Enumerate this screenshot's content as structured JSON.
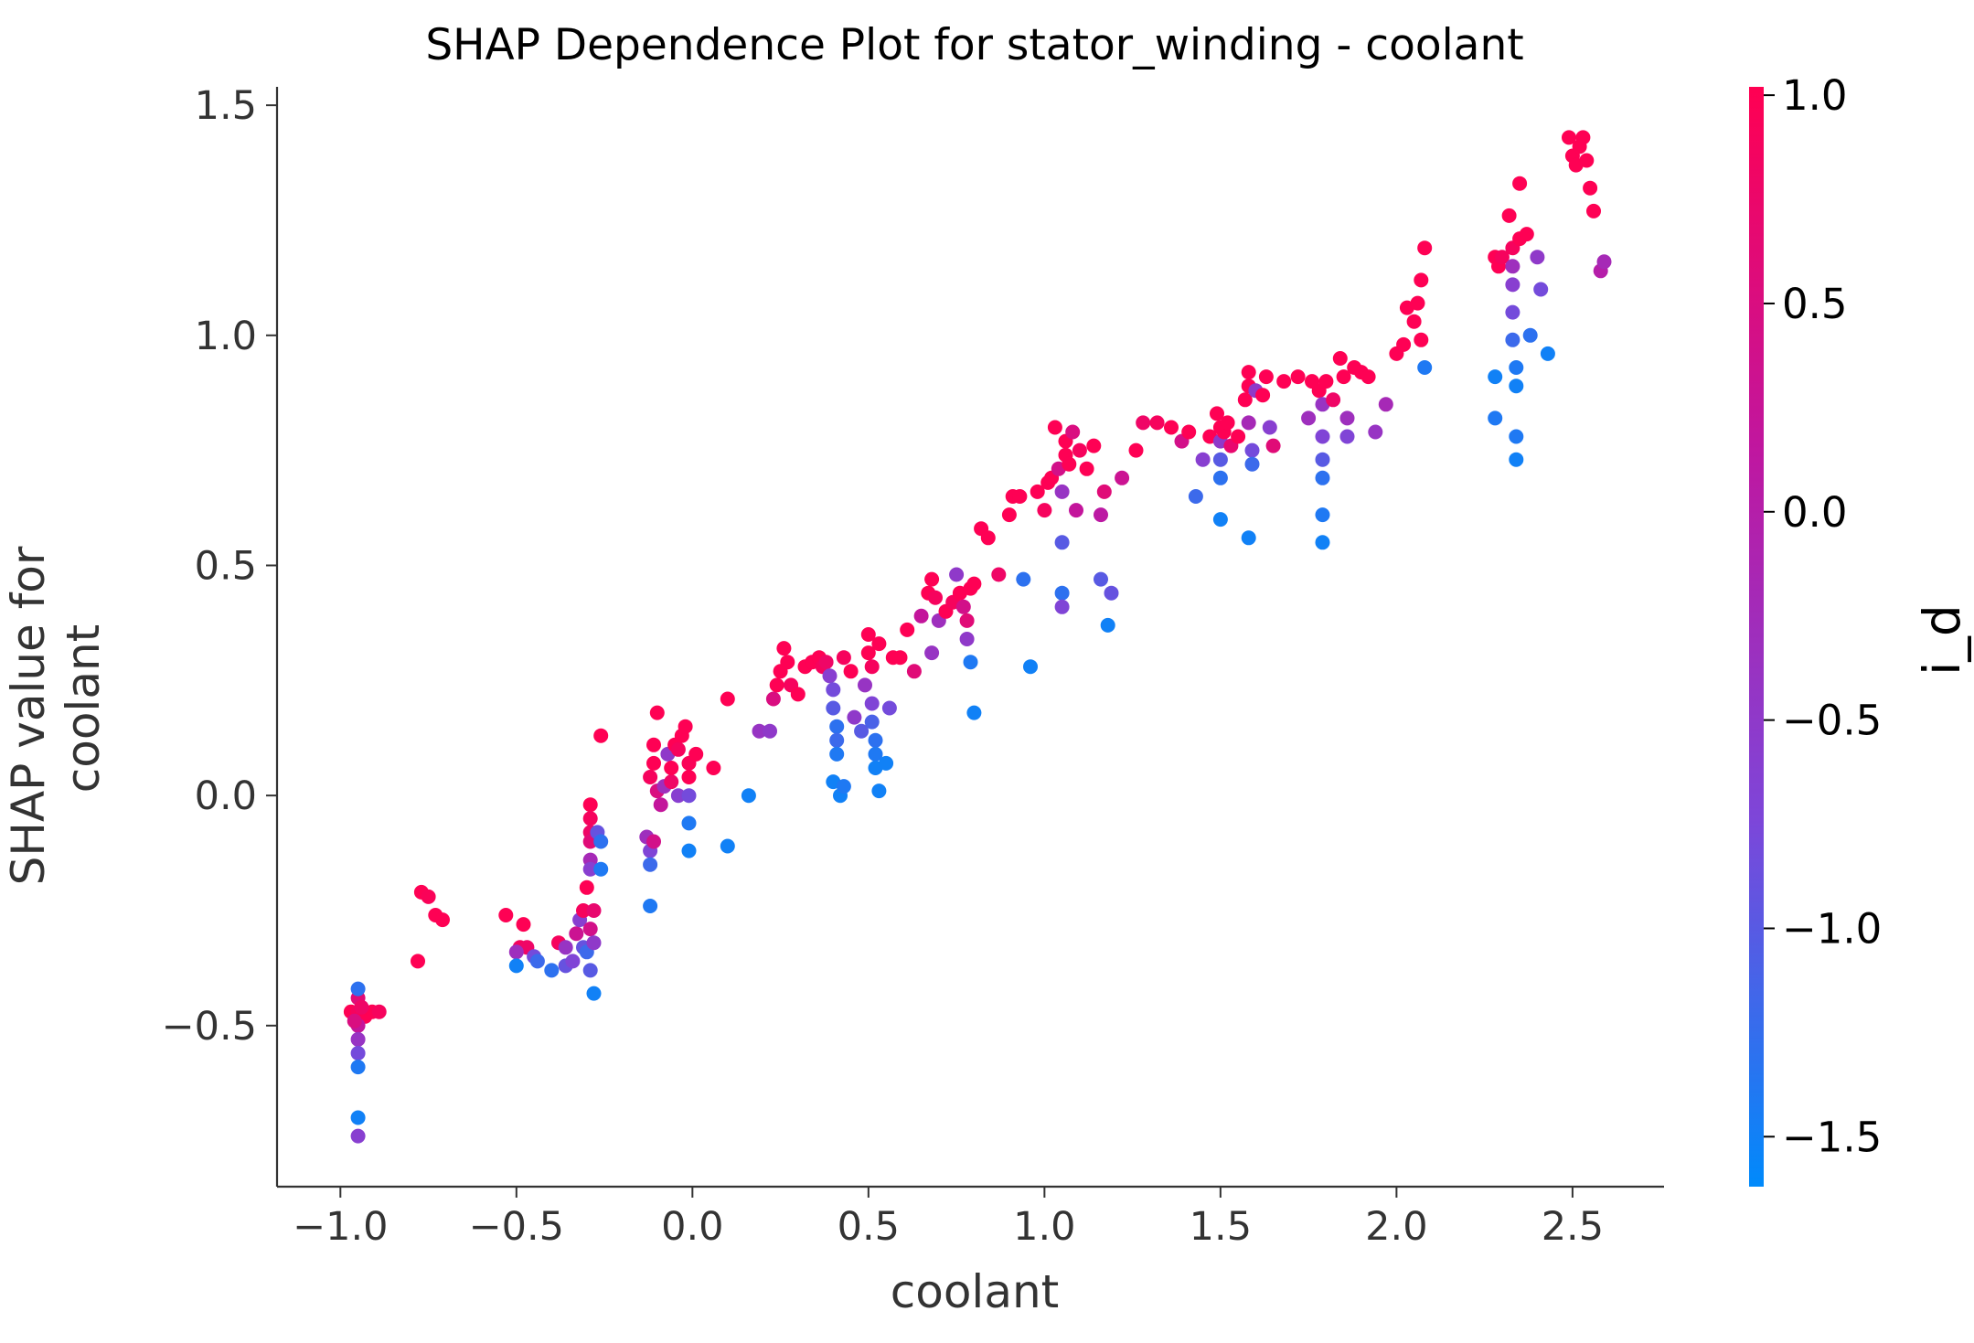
{
  "chart_data": {
    "type": "scatter",
    "title": "SHAP Dependence Plot for stator_winding - coolant",
    "xlabel": "coolant",
    "ylabel_lines": [
      "SHAP value for",
      "coolant"
    ],
    "xlim": [
      -1.18,
      2.76
    ],
    "ylim": [
      -0.85,
      1.54
    ],
    "x_ticks": [
      -1.0,
      -0.5,
      0.0,
      0.5,
      1.0,
      1.5,
      2.0,
      2.5
    ],
    "x_tick_labels": [
      "−1.0",
      "−0.5",
      "0.0",
      "0.5",
      "1.0",
      "1.5",
      "2.0",
      "2.5"
    ],
    "y_ticks": [
      -0.5,
      0.0,
      0.5,
      1.0,
      1.5
    ],
    "y_tick_labels": [
      "−0.5",
      "0.0",
      "0.5",
      "1.0",
      "1.5"
    ],
    "grid": false,
    "colorbar": {
      "label": "i_d",
      "range": [
        -1.62,
        1.02
      ],
      "ticks": [
        1.0,
        0.5,
        0.0,
        -0.5,
        -1.0,
        -1.5
      ],
      "tick_labels": [
        "1.0",
        "0.5",
        "0.0",
        "−0.5",
        "−1.0",
        "−1.5"
      ],
      "colors": [
        "#008afb",
        "#7d46d9",
        "#bf17a0",
        "#ff0052"
      ]
    },
    "points": [
      [
        -0.97,
        -0.47,
        1.0
      ],
      [
        -0.95,
        -0.47,
        0.9
      ],
      [
        -0.93,
        -0.48,
        1.0
      ],
      [
        -0.91,
        -0.47,
        1.0
      ],
      [
        -0.89,
        -0.47,
        0.9
      ],
      [
        -0.95,
        -0.44,
        0.6
      ],
      [
        -0.95,
        -0.5,
        0.2
      ],
      [
        -0.95,
        -0.53,
        -0.4
      ],
      [
        -0.95,
        -0.56,
        -0.8
      ],
      [
        -0.95,
        -0.59,
        -1.4
      ],
      [
        -0.95,
        -0.42,
        -1.3
      ],
      [
        -0.95,
        -0.7,
        -1.5
      ],
      [
        -0.95,
        -0.74,
        -0.6
      ],
      [
        -0.94,
        -0.46,
        0.8
      ],
      [
        -0.96,
        -0.49,
        0.5
      ],
      [
        -0.77,
        -0.21,
        1.0
      ],
      [
        -0.75,
        -0.22,
        0.95
      ],
      [
        -0.73,
        -0.26,
        1.0
      ],
      [
        -0.71,
        -0.27,
        1.0
      ],
      [
        -0.78,
        -0.36,
        1.0
      ],
      [
        -0.53,
        -0.26,
        1.0
      ],
      [
        -0.48,
        -0.28,
        1.0
      ],
      [
        -0.49,
        -0.33,
        0.9
      ],
      [
        -0.47,
        -0.33,
        0.8
      ],
      [
        -0.5,
        -0.34,
        -0.3
      ],
      [
        -0.5,
        -0.37,
        -1.5
      ],
      [
        -0.45,
        -0.35,
        -0.8
      ],
      [
        -0.44,
        -0.36,
        -1.2
      ],
      [
        -0.4,
        -0.38,
        -1.3
      ],
      [
        -0.38,
        -0.32,
        0.9
      ],
      [
        -0.36,
        -0.33,
        -0.4
      ],
      [
        -0.36,
        -0.37,
        -0.9
      ],
      [
        -0.34,
        -0.36,
        -0.7
      ],
      [
        -0.33,
        -0.3,
        0.3
      ],
      [
        -0.32,
        -0.27,
        -0.6
      ],
      [
        -0.31,
        -0.25,
        0.9
      ],
      [
        -0.31,
        -0.33,
        -0.9
      ],
      [
        -0.3,
        -0.34,
        -1.2
      ],
      [
        -0.3,
        -0.2,
        1.0
      ],
      [
        -0.29,
        -0.38,
        -1.0
      ],
      [
        -0.28,
        -0.43,
        -1.5
      ],
      [
        -0.29,
        -0.29,
        0.4
      ],
      [
        -0.28,
        -0.32,
        -0.5
      ],
      [
        -0.28,
        -0.25,
        0.7
      ],
      [
        -0.29,
        -0.02,
        1.0
      ],
      [
        -0.29,
        -0.05,
        0.9
      ],
      [
        -0.29,
        -0.08,
        0.8
      ],
      [
        -0.29,
        -0.1,
        0.6
      ],
      [
        -0.29,
        -0.14,
        -0.2
      ],
      [
        -0.29,
        -0.16,
        -0.6
      ],
      [
        -0.27,
        -0.08,
        -0.9
      ],
      [
        -0.26,
        -0.1,
        -1.3
      ],
      [
        -0.26,
        -0.16,
        -1.4
      ],
      [
        -0.26,
        0.13,
        1.0
      ],
      [
        -0.13,
        -0.09,
        -0.3
      ],
      [
        -0.12,
        -0.12,
        -0.7
      ],
      [
        -0.12,
        -0.15,
        -1.2
      ],
      [
        -0.12,
        -0.24,
        -1.4
      ],
      [
        -0.11,
        -0.1,
        0.4
      ],
      [
        -0.12,
        0.04,
        0.9
      ],
      [
        -0.11,
        0.07,
        1.0
      ],
      [
        -0.11,
        0.11,
        1.0
      ],
      [
        -0.1,
        0.18,
        1.0
      ],
      [
        -0.1,
        0.01,
        0.5
      ],
      [
        -0.09,
        -0.02,
        0.2
      ],
      [
        -0.08,
        0.02,
        -0.3
      ],
      [
        -0.07,
        0.09,
        -0.5
      ],
      [
        -0.06,
        0.03,
        0.8
      ],
      [
        -0.06,
        0.06,
        1.0
      ],
      [
        -0.05,
        0.11,
        1.0
      ],
      [
        -0.04,
        0.0,
        -0.6
      ],
      [
        -0.04,
        0.1,
        0.9
      ],
      [
        -0.03,
        0.13,
        1.0
      ],
      [
        -0.02,
        0.15,
        1.0
      ],
      [
        -0.01,
        0.07,
        0.95
      ],
      [
        -0.01,
        0.04,
        1.0
      ],
      [
        -0.01,
        0.0,
        -0.8
      ],
      [
        -0.01,
        -0.06,
        -1.4
      ],
      [
        -0.01,
        -0.12,
        -1.5
      ],
      [
        0.01,
        0.09,
        1.0
      ],
      [
        0.06,
        0.06,
        1.0
      ],
      [
        0.1,
        0.21,
        1.0
      ],
      [
        0.1,
        -0.11,
        -1.5
      ],
      [
        0.16,
        0.0,
        -1.5
      ],
      [
        0.19,
        0.14,
        -0.4
      ],
      [
        0.22,
        0.14,
        -0.5
      ],
      [
        0.23,
        0.21,
        0.5
      ],
      [
        0.24,
        0.24,
        1.0
      ],
      [
        0.25,
        0.27,
        1.0
      ],
      [
        0.26,
        0.32,
        1.0
      ],
      [
        0.27,
        0.29,
        1.0
      ],
      [
        0.28,
        0.24,
        0.9
      ],
      [
        0.3,
        0.22,
        1.0
      ],
      [
        0.32,
        0.28,
        1.0
      ],
      [
        0.34,
        0.29,
        1.0
      ],
      [
        0.36,
        0.3,
        1.0
      ],
      [
        0.37,
        0.28,
        0.9
      ],
      [
        0.38,
        0.29,
        0.8
      ],
      [
        0.39,
        0.26,
        -0.6
      ],
      [
        0.4,
        0.23,
        -0.8
      ],
      [
        0.4,
        0.19,
        -1.0
      ],
      [
        0.41,
        0.15,
        -1.3
      ],
      [
        0.41,
        0.12,
        -1.2
      ],
      [
        0.41,
        0.09,
        -1.4
      ],
      [
        0.4,
        0.03,
        -1.5
      ],
      [
        0.42,
        0.0,
        -1.5
      ],
      [
        0.43,
        0.02,
        -1.4
      ],
      [
        0.43,
        0.3,
        0.9
      ],
      [
        0.45,
        0.27,
        1.0
      ],
      [
        0.46,
        0.17,
        -0.5
      ],
      [
        0.48,
        0.14,
        -1.0
      ],
      [
        0.49,
        0.24,
        -0.4
      ],
      [
        0.5,
        0.31,
        1.0
      ],
      [
        0.5,
        0.35,
        1.0
      ],
      [
        0.51,
        0.28,
        0.9
      ],
      [
        0.51,
        0.2,
        -0.7
      ],
      [
        0.51,
        0.16,
        -1.1
      ],
      [
        0.52,
        0.12,
        -1.3
      ],
      [
        0.52,
        0.09,
        -1.4
      ],
      [
        0.52,
        0.06,
        -1.5
      ],
      [
        0.53,
        0.01,
        -1.5
      ],
      [
        0.53,
        0.33,
        1.0
      ],
      [
        0.55,
        0.07,
        -1.5
      ],
      [
        0.56,
        0.19,
        -0.8
      ],
      [
        0.57,
        0.3,
        1.0
      ],
      [
        0.59,
        0.3,
        1.0
      ],
      [
        0.61,
        0.36,
        1.0
      ],
      [
        0.63,
        0.27,
        0.6
      ],
      [
        0.65,
        0.39,
        0.2
      ],
      [
        0.67,
        0.44,
        1.0
      ],
      [
        0.68,
        0.47,
        1.0
      ],
      [
        0.69,
        0.43,
        0.9
      ],
      [
        0.7,
        0.38,
        -0.3
      ],
      [
        0.68,
        0.31,
        -0.4
      ],
      [
        0.72,
        0.4,
        1.0
      ],
      [
        0.74,
        0.42,
        0.9
      ],
      [
        0.75,
        0.48,
        -0.5
      ],
      [
        0.76,
        0.44,
        1.0
      ],
      [
        0.77,
        0.41,
        0.4
      ],
      [
        0.78,
        0.38,
        0.6
      ],
      [
        0.79,
        0.45,
        1.0
      ],
      [
        0.8,
        0.46,
        1.0
      ],
      [
        0.78,
        0.34,
        -0.5
      ],
      [
        0.79,
        0.29,
        -1.4
      ],
      [
        0.8,
        0.18,
        -1.5
      ],
      [
        0.82,
        0.58,
        1.0
      ],
      [
        0.84,
        0.56,
        1.0
      ],
      [
        0.87,
        0.48,
        0.8
      ],
      [
        0.9,
        0.61,
        1.0
      ],
      [
        0.91,
        0.65,
        1.0
      ],
      [
        0.93,
        0.65,
        1.0
      ],
      [
        0.94,
        0.47,
        -1.3
      ],
      [
        0.96,
        0.28,
        -1.5
      ],
      [
        0.98,
        0.66,
        1.0
      ],
      [
        1.0,
        0.62,
        0.9
      ],
      [
        1.01,
        0.68,
        1.0
      ],
      [
        1.02,
        0.69,
        1.0
      ],
      [
        1.03,
        0.8,
        1.0
      ],
      [
        1.04,
        0.71,
        0.4
      ],
      [
        1.05,
        0.66,
        -0.4
      ],
      [
        1.05,
        0.55,
        -1.0
      ],
      [
        1.05,
        0.44,
        -1.3
      ],
      [
        1.05,
        0.41,
        -0.7
      ],
      [
        1.06,
        0.74,
        1.0
      ],
      [
        1.06,
        0.77,
        1.0
      ],
      [
        1.07,
        0.72,
        1.0
      ],
      [
        1.08,
        0.79,
        0.5
      ],
      [
        1.09,
        0.62,
        0.2
      ],
      [
        1.1,
        0.75,
        0.9
      ],
      [
        1.12,
        0.71,
        1.0
      ],
      [
        1.14,
        0.76,
        1.0
      ],
      [
        1.16,
        0.47,
        -1.0
      ],
      [
        1.16,
        0.61,
        0.1
      ],
      [
        1.17,
        0.66,
        0.6
      ],
      [
        1.18,
        0.37,
        -1.5
      ],
      [
        1.19,
        0.44,
        -0.9
      ],
      [
        1.22,
        0.69,
        0.3
      ],
      [
        1.26,
        0.75,
        1.0
      ],
      [
        1.28,
        0.81,
        0.8
      ],
      [
        1.32,
        0.81,
        0.9
      ],
      [
        1.36,
        0.8,
        1.0
      ],
      [
        1.39,
        0.77,
        0.4
      ],
      [
        1.41,
        0.79,
        1.0
      ],
      [
        1.43,
        0.65,
        -1.2
      ],
      [
        1.45,
        0.73,
        -0.6
      ],
      [
        1.47,
        0.78,
        1.0
      ],
      [
        1.49,
        0.83,
        1.0
      ],
      [
        1.5,
        0.8,
        1.0
      ],
      [
        1.5,
        0.77,
        -0.5
      ],
      [
        1.5,
        0.73,
        -1.0
      ],
      [
        1.5,
        0.69,
        -1.3
      ],
      [
        1.5,
        0.6,
        -1.5
      ],
      [
        1.51,
        0.79,
        1.0
      ],
      [
        1.52,
        0.81,
        1.0
      ],
      [
        1.53,
        0.76,
        0.7
      ],
      [
        1.55,
        0.78,
        1.0
      ],
      [
        1.57,
        0.86,
        1.0
      ],
      [
        1.58,
        0.89,
        1.0
      ],
      [
        1.58,
        0.92,
        1.0
      ],
      [
        1.58,
        0.81,
        -0.2
      ],
      [
        1.59,
        0.75,
        -0.8
      ],
      [
        1.59,
        0.72,
        -1.2
      ],
      [
        1.58,
        0.56,
        -1.5
      ],
      [
        1.6,
        0.88,
        -0.5
      ],
      [
        1.62,
        0.87,
        1.0
      ],
      [
        1.63,
        0.91,
        1.0
      ],
      [
        1.64,
        0.8,
        -0.6
      ],
      [
        1.65,
        0.76,
        0.6
      ],
      [
        1.68,
        0.9,
        1.0
      ],
      [
        1.72,
        0.91,
        1.0
      ],
      [
        1.75,
        0.82,
        -0.3
      ],
      [
        1.76,
        0.9,
        1.0
      ],
      [
        1.78,
        0.88,
        1.0
      ],
      [
        1.79,
        0.85,
        -0.4
      ],
      [
        1.79,
        0.78,
        -0.7
      ],
      [
        1.79,
        0.73,
        -1.0
      ],
      [
        1.79,
        0.69,
        -1.3
      ],
      [
        1.79,
        0.61,
        -1.4
      ],
      [
        1.79,
        0.55,
        -1.5
      ],
      [
        1.8,
        0.9,
        1.0
      ],
      [
        1.82,
        0.86,
        0.8
      ],
      [
        1.84,
        0.95,
        1.0
      ],
      [
        1.85,
        0.91,
        1.0
      ],
      [
        1.86,
        0.82,
        -0.3
      ],
      [
        1.86,
        0.78,
        -0.7
      ],
      [
        1.88,
        0.93,
        1.0
      ],
      [
        1.9,
        0.92,
        1.0
      ],
      [
        1.92,
        0.91,
        1.0
      ],
      [
        1.94,
        0.79,
        -0.4
      ],
      [
        1.97,
        0.85,
        -0.2
      ],
      [
        2.0,
        0.96,
        1.0
      ],
      [
        2.02,
        0.98,
        1.0
      ],
      [
        2.03,
        1.06,
        1.0
      ],
      [
        2.05,
        1.03,
        1.0
      ],
      [
        2.06,
        1.07,
        1.0
      ],
      [
        2.07,
        1.12,
        1.0
      ],
      [
        2.08,
        1.19,
        1.0
      ],
      [
        2.07,
        0.99,
        1.0
      ],
      [
        2.08,
        0.93,
        -1.4
      ],
      [
        2.28,
        1.17,
        1.0
      ],
      [
        2.29,
        1.15,
        1.0
      ],
      [
        2.3,
        1.17,
        0.9
      ],
      [
        2.28,
        0.91,
        -1.5
      ],
      [
        2.28,
        0.82,
        -1.4
      ],
      [
        2.32,
        1.26,
        1.0
      ],
      [
        2.33,
        1.19,
        0.9
      ],
      [
        2.33,
        1.15,
        -0.3
      ],
      [
        2.33,
        1.11,
        -0.6
      ],
      [
        2.33,
        1.05,
        -0.8
      ],
      [
        2.33,
        0.99,
        -1.2
      ],
      [
        2.34,
        0.93,
        -1.4
      ],
      [
        2.34,
        0.89,
        -1.5
      ],
      [
        2.34,
        0.78,
        -1.4
      ],
      [
        2.34,
        0.73,
        -1.5
      ],
      [
        2.35,
        1.33,
        1.0
      ],
      [
        2.35,
        1.21,
        1.0
      ],
      [
        2.37,
        1.22,
        1.0
      ],
      [
        2.38,
        1.0,
        -1.3
      ],
      [
        2.4,
        1.17,
        -0.5
      ],
      [
        2.41,
        1.1,
        -0.8
      ],
      [
        2.43,
        0.96,
        -1.5
      ],
      [
        2.49,
        1.43,
        1.0
      ],
      [
        2.5,
        1.39,
        1.0
      ],
      [
        2.51,
        1.37,
        1.0
      ],
      [
        2.52,
        1.41,
        1.0
      ],
      [
        2.53,
        1.43,
        1.0
      ],
      [
        2.54,
        1.38,
        1.0
      ],
      [
        2.55,
        1.32,
        1.0
      ],
      [
        2.56,
        1.27,
        1.0
      ],
      [
        2.58,
        1.14,
        0.0
      ],
      [
        2.59,
        1.16,
        -0.2
      ]
    ]
  }
}
